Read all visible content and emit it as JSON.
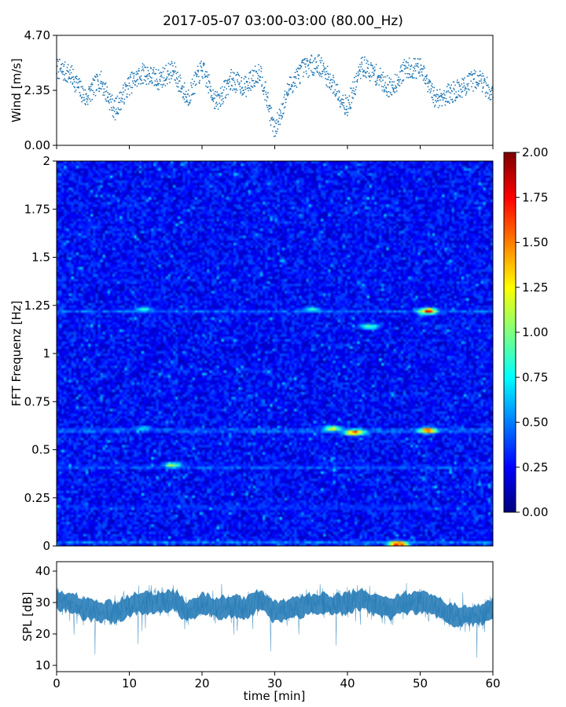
{
  "title": "2017-05-07 03:00-03:00 (80.00_Hz)",
  "chart_data": [
    {
      "type": "scatter",
      "panel": "wind",
      "ylabel": "Wind [m/s]",
      "xlabel": "",
      "xlim": [
        0,
        60
      ],
      "ylim": [
        0.0,
        4.7
      ],
      "yticks": [
        "0.00",
        "2.35",
        "4.70"
      ],
      "xticks": [
        0,
        10,
        20,
        30,
        40,
        50,
        60
      ],
      "grid": false,
      "color": "#1f77b4",
      "series_profile": {
        "x": [
          0,
          2,
          4,
          6,
          8,
          10,
          12,
          14,
          16,
          18,
          20,
          22,
          24,
          26,
          28,
          30,
          32,
          34,
          36,
          38,
          40,
          42,
          44,
          46,
          48,
          50,
          52,
          54,
          56,
          58,
          60
        ],
        "y": [
          3.3,
          3.0,
          2.0,
          2.8,
          1.5,
          2.6,
          3.1,
          2.8,
          3.2,
          2.0,
          3.3,
          1.8,
          2.8,
          2.5,
          3.2,
          0.6,
          2.5,
          3.3,
          3.5,
          2.6,
          1.6,
          3.4,
          3.0,
          2.4,
          3.3,
          3.3,
          2.0,
          2.2,
          2.5,
          2.9,
          2.2
        ]
      }
    },
    {
      "type": "heatmap",
      "panel": "spectrogram",
      "ylabel": "FFT Frequenz [Hz]",
      "xlabel": "",
      "xlim": [
        0,
        60
      ],
      "ylim": [
        0,
        2
      ],
      "yticks": [
        "0",
        "0.25",
        "0.5",
        "0.75",
        "1",
        "1.25",
        "1.5",
        "1.75",
        "2"
      ],
      "colormap": "jet",
      "colorbar": {
        "min": 0.0,
        "max": 2.0,
        "ticks": [
          "0.00",
          "0.25",
          "0.50",
          "0.75",
          "1.00",
          "1.25",
          "1.50",
          "1.75",
          "2.00"
        ]
      },
      "background_level": 0.25,
      "ridges": [
        {
          "freq": 0.02,
          "level": 0.55
        },
        {
          "freq": 0.2,
          "level": 0.45
        },
        {
          "freq": 0.41,
          "level": 0.5
        },
        {
          "freq": 0.6,
          "level": 0.6
        },
        {
          "freq": 1.22,
          "level": 0.5
        }
      ],
      "hotspots": [
        {
          "t": 12,
          "freq": 1.23,
          "level": 0.9
        },
        {
          "t": 12,
          "freq": 0.61,
          "level": 0.8
        },
        {
          "t": 16,
          "freq": 0.42,
          "level": 1.2
        },
        {
          "t": 35,
          "freq": 1.23,
          "level": 0.9
        },
        {
          "t": 38,
          "freq": 0.61,
          "level": 1.3
        },
        {
          "t": 41,
          "freq": 0.59,
          "level": 1.9
        },
        {
          "t": 43,
          "freq": 1.14,
          "level": 1.1
        },
        {
          "t": 51,
          "freq": 1.22,
          "level": 1.8
        },
        {
          "t": 51,
          "freq": 0.6,
          "level": 1.7
        },
        {
          "t": 47,
          "freq": 0.01,
          "level": 1.9
        }
      ]
    },
    {
      "type": "line",
      "panel": "spl",
      "ylabel": "SPL [dB]",
      "xlabel": "time [min]",
      "xlim": [
        0,
        60
      ],
      "ylim": [
        8,
        43
      ],
      "yticks": [
        10,
        20,
        30,
        40
      ],
      "xticks": [
        0,
        10,
        20,
        30,
        40,
        50,
        60
      ],
      "grid": false,
      "color": "#1f77b4",
      "series_profile": {
        "x": [
          0,
          2,
          4,
          6,
          8,
          10,
          12,
          14,
          16,
          18,
          20,
          22,
          24,
          26,
          28,
          30,
          32,
          34,
          36,
          38,
          40,
          42,
          44,
          46,
          48,
          50,
          52,
          54,
          56,
          58,
          60
        ],
        "mean": [
          31,
          30,
          28,
          27,
          27,
          29,
          30,
          30,
          31,
          27,
          30,
          28,
          29,
          28,
          31,
          27,
          28,
          29,
          30,
          29,
          30,
          31,
          29,
          28,
          30,
          30,
          29,
          26,
          26,
          26,
          28
        ],
        "spread": [
          5,
          5,
          5,
          5,
          5,
          5,
          6,
          6,
          6,
          6,
          6,
          5,
          5,
          5,
          6,
          5,
          5,
          5,
          5,
          5,
          6,
          6,
          5,
          5,
          5,
          5,
          5,
          5,
          5,
          5,
          6
        ]
      }
    }
  ]
}
